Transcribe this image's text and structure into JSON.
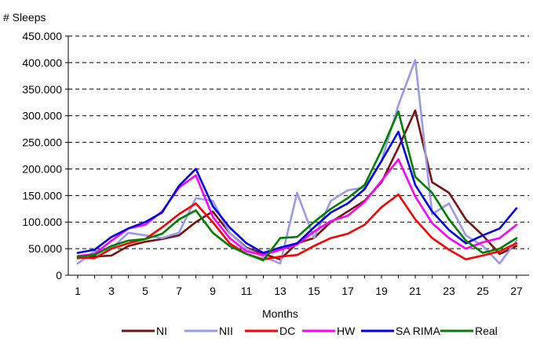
{
  "chart_data": {
    "type": "line",
    "ylabel": "# Sleeps",
    "xlabel": "Months",
    "ylim": [
      0,
      450000
    ],
    "y_ticks": [
      0,
      50000,
      100000,
      150000,
      200000,
      250000,
      300000,
      350000,
      400000,
      450000
    ],
    "y_tick_labels": [
      "0",
      "50.000",
      "100.000",
      "150.000",
      "200.000",
      "250.000",
      "300.000",
      "350.000",
      "400.000",
      "450.000"
    ],
    "x_ticks": [
      1,
      3,
      5,
      7,
      9,
      11,
      13,
      15,
      17,
      19,
      21,
      23,
      25,
      27
    ],
    "x": [
      1,
      2,
      3,
      4,
      5,
      6,
      7,
      8,
      9,
      10,
      11,
      12,
      13,
      14,
      15,
      16,
      17,
      18,
      19,
      20,
      21,
      22,
      23,
      24,
      25,
      26,
      27
    ],
    "grid": "horizontal-dashed",
    "legend_position": "bottom",
    "series": [
      {
        "name": "NI",
        "color": "#7b1010",
        "values": [
          32000,
          35000,
          37000,
          55000,
          63000,
          68000,
          75000,
          100000,
          120000,
          80000,
          52000,
          40000,
          30000,
          60000,
          70000,
          100000,
          120000,
          140000,
          175000,
          240000,
          310000,
          175000,
          155000,
          105000,
          75000,
          40000,
          55000
        ]
      },
      {
        "name": "NII",
        "color": "#9999ee",
        "values": [
          22000,
          45000,
          50000,
          80000,
          75000,
          70000,
          80000,
          145000,
          140000,
          80000,
          50000,
          35000,
          22000,
          155000,
          70000,
          140000,
          160000,
          165000,
          215000,
          320000,
          405000,
          115000,
          135000,
          75000,
          55000,
          22000,
          65000
        ]
      },
      {
        "name": "DC",
        "color": "#ff0000",
        "values": [
          33000,
          32000,
          50000,
          60000,
          68000,
          90000,
          115000,
          135000,
          100000,
          60000,
          40000,
          30000,
          35000,
          38000,
          55000,
          70000,
          78000,
          95000,
          128000,
          152000,
          105000,
          70000,
          48000,
          30000,
          37000,
          45000,
          60000
        ]
      },
      {
        "name": "HW",
        "color": "#ff00ff",
        "values": [
          36000,
          40000,
          65000,
          88000,
          95000,
          120000,
          165000,
          188000,
          110000,
          70000,
          45000,
          38000,
          48000,
          58000,
          82000,
          102000,
          112000,
          138000,
          178000,
          218000,
          148000,
          98000,
          70000,
          50000,
          62000,
          70000,
          95000
        ]
      },
      {
        "name": "SA RIMA",
        "color": "#0000ee",
        "values": [
          42000,
          48000,
          72000,
          88000,
          100000,
          118000,
          168000,
          200000,
          130000,
          90000,
          60000,
          42000,
          52000,
          60000,
          90000,
          118000,
          135000,
          162000,
          215000,
          270000,
          170000,
          120000,
          85000,
          60000,
          75000,
          88000,
          126000
        ]
      },
      {
        "name": "Real",
        "color": "#008000",
        "values": [
          35000,
          38000,
          55000,
          65000,
          68000,
          78000,
          105000,
          122000,
          80000,
          55000,
          40000,
          28000,
          70000,
          72000,
          100000,
          125000,
          145000,
          170000,
          235000,
          308000,
          185000,
          155000,
          105000,
          65000,
          42000,
          50000,
          70000
        ]
      }
    ]
  }
}
